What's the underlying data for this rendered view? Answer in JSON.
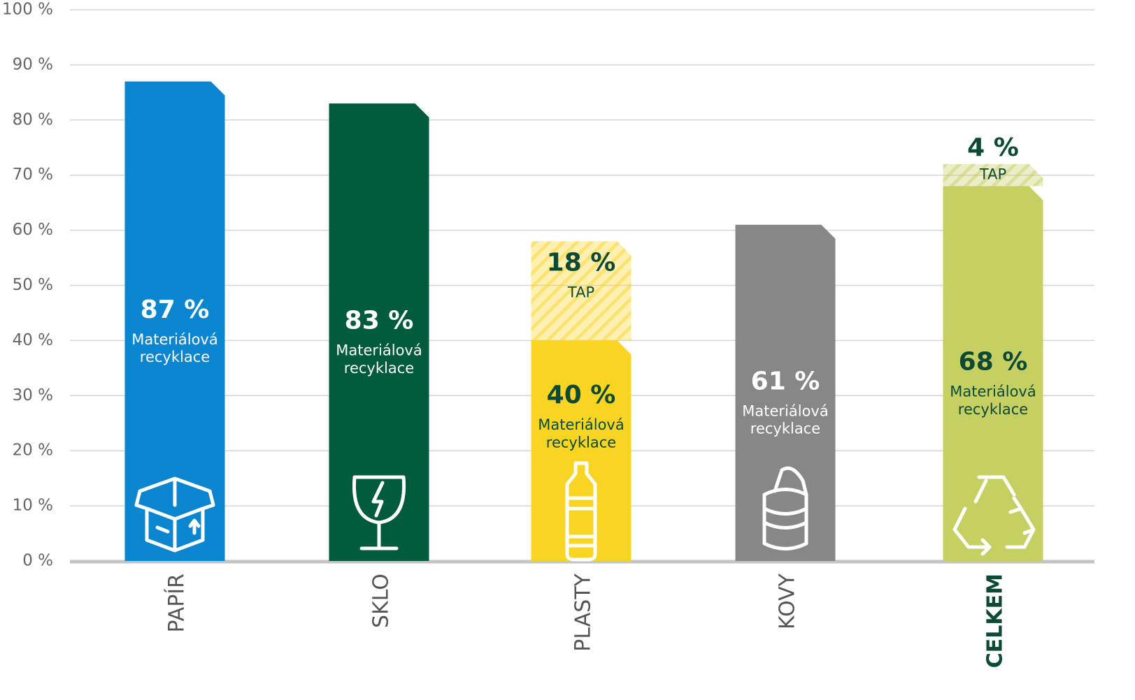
{
  "chart_data": {
    "type": "stacked-bar",
    "categories": [
      "PAPÍR",
      "SKLO",
      "PLASTY",
      "KOVY",
      "CELKEM"
    ],
    "colors": [
      "#0a85cf",
      "#005a3c",
      "#f9d423",
      "#878787",
      "#c5cf62"
    ],
    "series": [
      {
        "name": "Materiálová recyklace",
        "values": [
          87,
          83,
          40,
          61,
          68
        ],
        "value_labels": [
          "87 %",
          "83 %",
          "40 %",
          "61 %",
          "68 %"
        ]
      },
      {
        "name": "TAP",
        "pattern": "hatch",
        "values": [
          null,
          null,
          18,
          null,
          4
        ],
        "value_labels": [
          null,
          null,
          "18 %",
          null,
          "4 %"
        ]
      }
    ],
    "ylim": [
      0,
      100
    ],
    "yticks": [
      {
        "value": 0,
        "label": "0 %"
      },
      {
        "value": 10,
        "label": "10 %"
      },
      {
        "value": 20,
        "label": "20 %"
      },
      {
        "value": 30,
        "label": "30 %"
      },
      {
        "value": 40,
        "label": "40 %"
      },
      {
        "value": 50,
        "label": "50 %"
      },
      {
        "value": 60,
        "label": "60 %"
      },
      {
        "value": 70,
        "label": "70 %"
      },
      {
        "value": 80,
        "label": "80 %"
      },
      {
        "value": 90,
        "label": "90 %"
      },
      {
        "value": 100,
        "label": "100 %"
      }
    ],
    "grid": true
  }
}
